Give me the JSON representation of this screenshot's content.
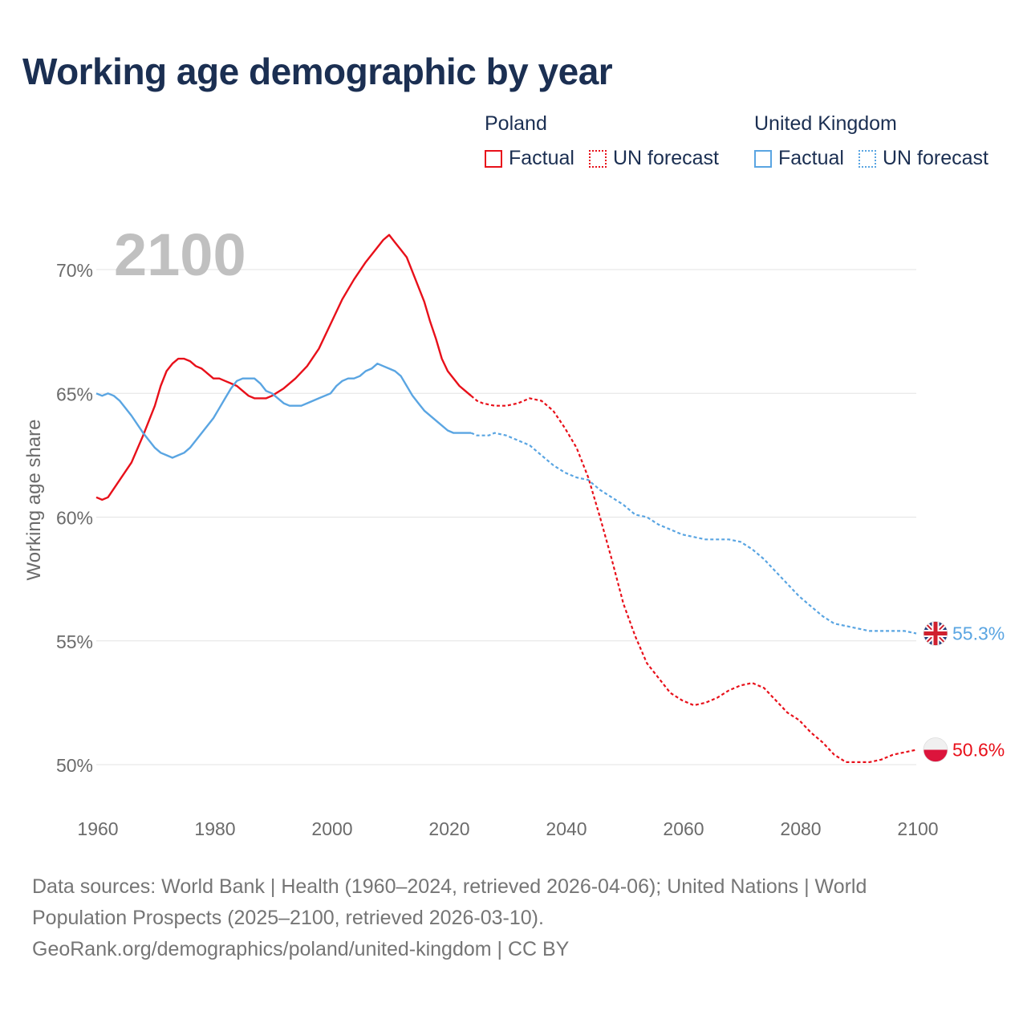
{
  "chart_data": {
    "type": "line",
    "title": "Working age demographic by year",
    "ylabel": "Working age share",
    "xlabel": "",
    "year_watermark": "2100",
    "x_ticks": [
      1960,
      1980,
      2000,
      2020,
      2040,
      2060,
      2080,
      2100
    ],
    "y_ticks": [
      {
        "value": 50,
        "label": "50%"
      },
      {
        "value": 55,
        "label": "55%"
      },
      {
        "value": 60,
        "label": "60%"
      },
      {
        "value": 65,
        "label": "65%"
      },
      {
        "value": 70,
        "label": "70%"
      }
    ],
    "xlim": [
      1960,
      2100
    ],
    "ylim": [
      48,
      72
    ],
    "forecast_start": 2024,
    "series": [
      {
        "name": "Poland",
        "color": "#e8101a",
        "end_label": "50.6%",
        "flag": "poland-flag",
        "points": [
          [
            1960,
            60.8
          ],
          [
            1961,
            60.7
          ],
          [
            1962,
            60.8
          ],
          [
            1964,
            61.5
          ],
          [
            1966,
            62.2
          ],
          [
            1968,
            63.3
          ],
          [
            1970,
            64.5
          ],
          [
            1971,
            65.3
          ],
          [
            1972,
            65.9
          ],
          [
            1973,
            66.2
          ],
          [
            1974,
            66.4
          ],
          [
            1975,
            66.4
          ],
          [
            1976,
            66.3
          ],
          [
            1977,
            66.1
          ],
          [
            1978,
            66.0
          ],
          [
            1979,
            65.8
          ],
          [
            1980,
            65.6
          ],
          [
            1981,
            65.6
          ],
          [
            1982,
            65.5
          ],
          [
            1983,
            65.4
          ],
          [
            1984,
            65.3
          ],
          [
            1985,
            65.1
          ],
          [
            1986,
            64.9
          ],
          [
            1987,
            64.8
          ],
          [
            1988,
            64.8
          ],
          [
            1989,
            64.8
          ],
          [
            1990,
            64.9
          ],
          [
            1992,
            65.2
          ],
          [
            1994,
            65.6
          ],
          [
            1996,
            66.1
          ],
          [
            1998,
            66.8
          ],
          [
            2000,
            67.8
          ],
          [
            2002,
            68.8
          ],
          [
            2004,
            69.6
          ],
          [
            2006,
            70.3
          ],
          [
            2008,
            70.9
          ],
          [
            2009,
            71.2
          ],
          [
            2010,
            71.4
          ],
          [
            2011,
            71.1
          ],
          [
            2012,
            70.8
          ],
          [
            2013,
            70.5
          ],
          [
            2014,
            69.9
          ],
          [
            2015,
            69.3
          ],
          [
            2016,
            68.7
          ],
          [
            2017,
            67.9
          ],
          [
            2018,
            67.2
          ],
          [
            2019,
            66.4
          ],
          [
            2020,
            65.9
          ],
          [
            2021,
            65.6
          ],
          [
            2022,
            65.3
          ],
          [
            2023,
            65.1
          ],
          [
            2024,
            64.9
          ],
          [
            2025,
            64.7
          ],
          [
            2026,
            64.6
          ],
          [
            2028,
            64.5
          ],
          [
            2030,
            64.5
          ],
          [
            2032,
            64.6
          ],
          [
            2034,
            64.8
          ],
          [
            2036,
            64.7
          ],
          [
            2038,
            64.3
          ],
          [
            2040,
            63.6
          ],
          [
            2042,
            62.8
          ],
          [
            2044,
            61.6
          ],
          [
            2046,
            60.0
          ],
          [
            2048,
            58.3
          ],
          [
            2050,
            56.5
          ],
          [
            2052,
            55.2
          ],
          [
            2054,
            54.1
          ],
          [
            2056,
            53.5
          ],
          [
            2058,
            52.9
          ],
          [
            2060,
            52.6
          ],
          [
            2062,
            52.4
          ],
          [
            2064,
            52.5
          ],
          [
            2066,
            52.7
          ],
          [
            2068,
            53.0
          ],
          [
            2070,
            53.2
          ],
          [
            2072,
            53.3
          ],
          [
            2074,
            53.1
          ],
          [
            2076,
            52.6
          ],
          [
            2078,
            52.1
          ],
          [
            2080,
            51.8
          ],
          [
            2082,
            51.3
          ],
          [
            2084,
            50.9
          ],
          [
            2086,
            50.4
          ],
          [
            2088,
            50.1
          ],
          [
            2090,
            50.1
          ],
          [
            2092,
            50.1
          ],
          [
            2094,
            50.2
          ],
          [
            2096,
            50.4
          ],
          [
            2098,
            50.5
          ],
          [
            2100,
            50.6
          ]
        ]
      },
      {
        "name": "United Kingdom",
        "color": "#5aa5e2",
        "end_label": "55.3%",
        "flag": "united-kingdom-flag",
        "points": [
          [
            1960,
            65.0
          ],
          [
            1961,
            64.9
          ],
          [
            1962,
            65.0
          ],
          [
            1963,
            64.9
          ],
          [
            1964,
            64.7
          ],
          [
            1966,
            64.1
          ],
          [
            1968,
            63.4
          ],
          [
            1970,
            62.8
          ],
          [
            1971,
            62.6
          ],
          [
            1972,
            62.5
          ],
          [
            1973,
            62.4
          ],
          [
            1974,
            62.5
          ],
          [
            1975,
            62.6
          ],
          [
            1976,
            62.8
          ],
          [
            1978,
            63.4
          ],
          [
            1980,
            64.0
          ],
          [
            1981,
            64.4
          ],
          [
            1982,
            64.8
          ],
          [
            1983,
            65.2
          ],
          [
            1984,
            65.5
          ],
          [
            1985,
            65.6
          ],
          [
            1986,
            65.6
          ],
          [
            1987,
            65.6
          ],
          [
            1988,
            65.4
          ],
          [
            1989,
            65.1
          ],
          [
            1990,
            65.0
          ],
          [
            1991,
            64.8
          ],
          [
            1992,
            64.6
          ],
          [
            1993,
            64.5
          ],
          [
            1994,
            64.5
          ],
          [
            1995,
            64.5
          ],
          [
            1996,
            64.6
          ],
          [
            1998,
            64.8
          ],
          [
            2000,
            65.0
          ],
          [
            2001,
            65.3
          ],
          [
            2002,
            65.5
          ],
          [
            2003,
            65.6
          ],
          [
            2004,
            65.6
          ],
          [
            2005,
            65.7
          ],
          [
            2006,
            65.9
          ],
          [
            2007,
            66.0
          ],
          [
            2008,
            66.2
          ],
          [
            2009,
            66.1
          ],
          [
            2010,
            66.0
          ],
          [
            2011,
            65.9
          ],
          [
            2012,
            65.7
          ],
          [
            2013,
            65.3
          ],
          [
            2014,
            64.9
          ],
          [
            2015,
            64.6
          ],
          [
            2016,
            64.3
          ],
          [
            2018,
            63.9
          ],
          [
            2020,
            63.5
          ],
          [
            2021,
            63.4
          ],
          [
            2022,
            63.4
          ],
          [
            2023,
            63.4
          ],
          [
            2024,
            63.4
          ],
          [
            2025,
            63.3
          ],
          [
            2026,
            63.3
          ],
          [
            2027,
            63.3
          ],
          [
            2028,
            63.4
          ],
          [
            2030,
            63.3
          ],
          [
            2032,
            63.1
          ],
          [
            2034,
            62.9
          ],
          [
            2036,
            62.5
          ],
          [
            2038,
            62.1
          ],
          [
            2040,
            61.8
          ],
          [
            2042,
            61.6
          ],
          [
            2044,
            61.5
          ],
          [
            2046,
            61.1
          ],
          [
            2048,
            60.8
          ],
          [
            2050,
            60.5
          ],
          [
            2052,
            60.1
          ],
          [
            2054,
            60.0
          ],
          [
            2056,
            59.7
          ],
          [
            2058,
            59.5
          ],
          [
            2060,
            59.3
          ],
          [
            2062,
            59.2
          ],
          [
            2064,
            59.1
          ],
          [
            2066,
            59.1
          ],
          [
            2068,
            59.1
          ],
          [
            2070,
            59.0
          ],
          [
            2072,
            58.7
          ],
          [
            2074,
            58.3
          ],
          [
            2076,
            57.8
          ],
          [
            2078,
            57.3
          ],
          [
            2080,
            56.8
          ],
          [
            2082,
            56.4
          ],
          [
            2084,
            56.0
          ],
          [
            2086,
            55.7
          ],
          [
            2088,
            55.6
          ],
          [
            2090,
            55.5
          ],
          [
            2092,
            55.4
          ],
          [
            2094,
            55.4
          ],
          [
            2096,
            55.4
          ],
          [
            2098,
            55.4
          ],
          [
            2100,
            55.3
          ]
        ]
      }
    ]
  },
  "legend": {
    "groups": [
      {
        "name": "Poland",
        "color": "#e8101a",
        "items": [
          {
            "label": "Factual",
            "style": "solid"
          },
          {
            "label": "UN forecast",
            "style": "dotted"
          }
        ]
      },
      {
        "name": "United Kingdom",
        "color": "#5aa5e2",
        "items": [
          {
            "label": "Factual",
            "style": "solid"
          },
          {
            "label": "UN forecast",
            "style": "dotted"
          }
        ]
      }
    ]
  },
  "footer": {
    "line1": "Data sources: World Bank | Health (1960–2024, retrieved 2026-04-06); United Nations | World",
    "line2": "Population Prospects (2025–2100, retrieved 2026-03-10).",
    "line3": "GeoRank.org/demographics/poland/united-kingdom | CC BY"
  }
}
